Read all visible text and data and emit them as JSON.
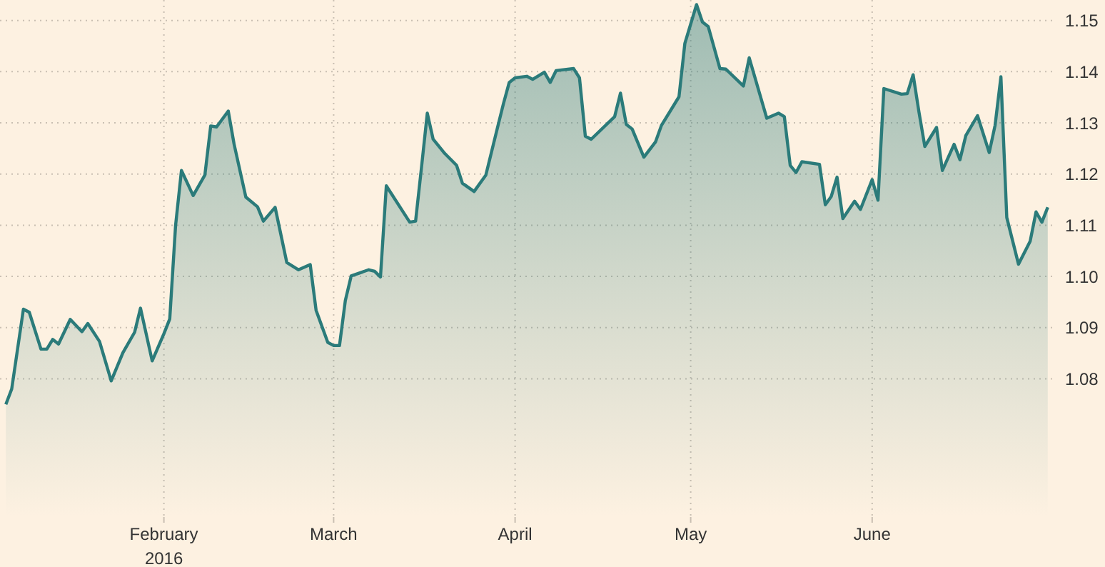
{
  "chart_data": {
    "type": "area",
    "x": [
      "2016-01-05",
      "2016-01-06",
      "2016-01-08",
      "2016-01-09",
      "2016-01-11",
      "2016-01-12",
      "2016-01-13",
      "2016-01-14",
      "2016-01-16",
      "2016-01-18",
      "2016-01-19",
      "2016-01-21",
      "2016-01-23",
      "2016-01-25",
      "2016-01-27",
      "2016-01-28",
      "2016-01-30",
      "2016-02-01",
      "2016-02-02",
      "2016-02-03",
      "2016-02-04",
      "2016-02-06",
      "2016-02-08",
      "2016-02-09",
      "2016-02-10",
      "2016-02-12",
      "2016-02-13",
      "2016-02-15",
      "2016-02-17",
      "2016-02-18",
      "2016-02-20",
      "2016-02-22",
      "2016-02-24",
      "2016-02-26",
      "2016-02-27",
      "2016-02-29",
      "2016-03-01",
      "2016-03-02",
      "2016-03-03",
      "2016-03-04",
      "2016-03-07",
      "2016-03-08",
      "2016-03-09",
      "2016-03-10",
      "2016-03-14",
      "2016-03-15",
      "2016-03-16",
      "2016-03-17",
      "2016-03-18",
      "2016-03-20",
      "2016-03-22",
      "2016-03-23",
      "2016-03-25",
      "2016-03-27",
      "2016-03-29",
      "2016-03-30",
      "2016-03-31",
      "2016-04-01",
      "2016-04-03",
      "2016-04-04",
      "2016-04-06",
      "2016-04-07",
      "2016-04-08",
      "2016-04-11",
      "2016-04-12",
      "2016-04-13",
      "2016-04-14",
      "2016-04-18",
      "2016-04-19",
      "2016-04-20",
      "2016-04-21",
      "2016-04-23",
      "2016-04-25",
      "2016-04-26",
      "2016-04-29",
      "2016-04-30",
      "2016-05-02",
      "2016-05-03",
      "2016-05-04",
      "2016-05-06",
      "2016-05-07",
      "2016-05-10",
      "2016-05-11",
      "2016-05-14",
      "2016-05-15",
      "2016-05-16",
      "2016-05-17",
      "2016-05-18",
      "2016-05-19",
      "2016-05-20",
      "2016-05-23",
      "2016-05-24",
      "2016-05-25",
      "2016-05-26",
      "2016-05-27",
      "2016-05-29",
      "2016-05-30",
      "2016-06-01",
      "2016-06-02",
      "2016-06-03",
      "2016-06-06",
      "2016-06-07",
      "2016-06-08",
      "2016-06-09",
      "2016-06-10",
      "2016-06-12",
      "2016-06-13",
      "2016-06-15",
      "2016-06-16",
      "2016-06-17",
      "2016-06-19",
      "2016-06-21",
      "2016-06-22",
      "2016-06-23",
      "2016-06-24",
      "2016-06-26",
      "2016-06-28",
      "2016-06-29",
      "2016-06-30",
      "2016-07-01"
    ],
    "series": [
      {
        "color": "#2b7b7a",
        "values": [
          1.075,
          1.078,
          1.0936,
          1.093,
          1.0858,
          1.0858,
          1.0877,
          1.0868,
          1.0916,
          1.0892,
          1.0908,
          1.0873,
          1.0796,
          1.0851,
          1.0891,
          1.0938,
          1.0835,
          1.0888,
          1.0917,
          1.11,
          1.1207,
          1.1158,
          1.1198,
          1.1294,
          1.1292,
          1.1323,
          1.1258,
          1.1155,
          1.1136,
          1.1108,
          1.1135,
          1.1027,
          1.1013,
          1.1023,
          1.0934,
          1.0871,
          1.0865,
          1.0865,
          1.0953,
          1.1001,
          1.1013,
          1.101,
          1.0999,
          1.1177,
          1.1106,
          1.1108,
          1.1212,
          1.1319,
          1.1268,
          1.124,
          1.1217,
          1.1182,
          1.1166,
          1.1198,
          1.1291,
          1.1337,
          1.1379,
          1.1388,
          1.1391,
          1.1385,
          1.1399,
          1.1379,
          1.1402,
          1.1406,
          1.1388,
          1.1274,
          1.1268,
          1.1312,
          1.1358,
          1.1297,
          1.1288,
          1.1233,
          1.1263,
          1.1295,
          1.1351,
          1.1455,
          1.1531,
          1.1497,
          1.1488,
          1.1406,
          1.1405,
          1.1372,
          1.1427,
          1.1309,
          1.1314,
          1.1319,
          1.1312,
          1.1217,
          1.1203,
          1.1224,
          1.1219,
          1.114,
          1.1156,
          1.1194,
          1.1113,
          1.1147,
          1.1131,
          1.1189,
          1.1149,
          1.1367,
          1.1356,
          1.1357,
          1.1394,
          1.1321,
          1.1254,
          1.1291,
          1.1207,
          1.1258,
          1.1228,
          1.1275,
          1.1314,
          1.1242,
          1.1295,
          1.139,
          1.1115,
          1.1024,
          1.1069,
          1.1126,
          1.1106,
          1.1135
        ]
      }
    ],
    "xlim": [
      "2016-01-04",
      "2016-07-02"
    ],
    "xticks": [
      {
        "value": "2016-02-01",
        "label": "February\n2016"
      },
      {
        "value": "2016-03-01",
        "label": "March"
      },
      {
        "value": "2016-04-01",
        "label": "April"
      },
      {
        "value": "2016-05-01",
        "label": "May"
      },
      {
        "value": "2016-06-01",
        "label": "June"
      }
    ],
    "ylim": [
      1.053,
      1.154
    ],
    "yticks": [
      1.08,
      1.09,
      {
        "value": 1.1,
        "label": "1.10"
      },
      1.11,
      1.12,
      1.13,
      1.14,
      1.15
    ],
    "grid": true,
    "marker": "none",
    "line_style": "solid"
  }
}
